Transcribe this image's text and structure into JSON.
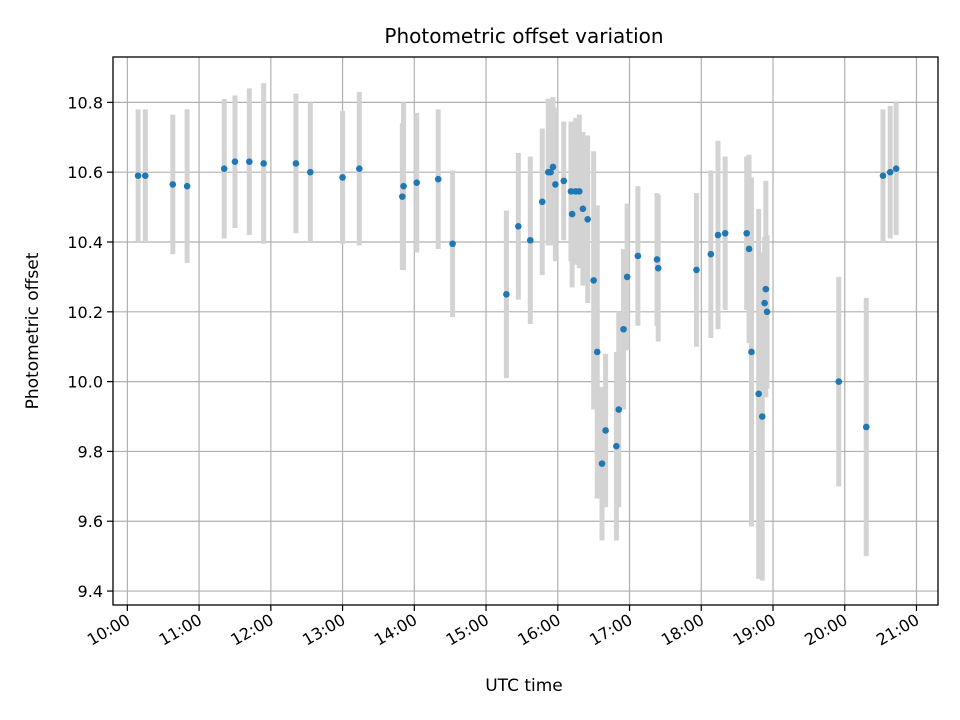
{
  "chart_data": {
    "type": "scatter",
    "title": "Photometric offset variation",
    "xlabel": "UTC time",
    "ylabel": "Photometric offset",
    "x_unit": "hours UTC",
    "xlim": [
      "09:48",
      "21:18"
    ],
    "ylim": [
      9.36,
      10.93
    ],
    "xticks": [
      "10:00",
      "11:00",
      "12:00",
      "13:00",
      "14:00",
      "15:00",
      "16:00",
      "17:00",
      "18:00",
      "19:00",
      "20:00",
      "21:00"
    ],
    "yticks": [
      "9.4",
      "9.6",
      "9.8",
      "10.0",
      "10.2",
      "10.4",
      "10.6",
      "10.8"
    ],
    "grid": true,
    "legend": "none",
    "colors": {
      "point": "#1f77b4",
      "errorbar": "#d3d3d3",
      "grid": "#b0b0b0"
    },
    "series": [
      {
        "x": [
          "10:09",
          "10:15",
          "10:38",
          "10:50",
          "11:21",
          "11:30",
          "11:42",
          "11:54",
          "12:21",
          "12:33",
          "13:00",
          "13:14",
          "13:50",
          "13:51",
          "14:02",
          "14:20",
          "14:32",
          "15:17",
          "15:27",
          "15:37",
          "15:47",
          "15:52",
          "15:54",
          "15:56",
          "15:58",
          "16:05",
          "16:11",
          "16:12",
          "16:15",
          "16:18",
          "16:21",
          "16:25",
          "16:30",
          "16:33",
          "16:37",
          "16:40",
          "16:49",
          "16:51",
          "16:55",
          "16:58",
          "17:07",
          "17:23",
          "17:24",
          "17:56",
          "18:08",
          "18:14",
          "18:20",
          "18:38",
          "18:40",
          "18:42",
          "18:48",
          "18:51",
          "18:53",
          "18:54",
          "18:55",
          "19:55",
          "20:18",
          "20:32",
          "20:38",
          "20:43"
        ],
        "y": [
          10.59,
          10.59,
          10.565,
          10.56,
          10.61,
          10.63,
          10.63,
          10.625,
          10.625,
          10.6,
          10.585,
          10.61,
          10.53,
          10.56,
          10.57,
          10.58,
          10.395,
          10.25,
          10.445,
          10.405,
          10.515,
          10.6,
          10.6,
          10.615,
          10.565,
          10.575,
          10.545,
          10.48,
          10.545,
          10.545,
          10.495,
          10.465,
          10.29,
          10.085,
          9.765,
          9.86,
          9.815,
          9.92,
          10.15,
          10.3,
          10.36,
          10.35,
          10.325,
          10.32,
          10.365,
          10.42,
          10.425,
          10.425,
          10.38,
          10.085,
          9.965,
          9.9,
          10.225,
          10.265,
          10.2,
          10.0,
          9.87,
          10.59,
          10.6,
          10.61
        ],
        "yerr": [
          0.19,
          0.19,
          0.2,
          0.22,
          0.2,
          0.19,
          0.21,
          0.23,
          0.2,
          0.2,
          0.19,
          0.22,
          0.21,
          0.24,
          0.2,
          0.2,
          0.21,
          0.24,
          0.21,
          0.24,
          0.21,
          0.21,
          0.21,
          0.2,
          0.22,
          0.17,
          0.2,
          0.21,
          0.21,
          0.22,
          0.22,
          0.24,
          0.37,
          0.42,
          0.22,
          0.22,
          0.27,
          0.28,
          0.23,
          0.21,
          0.2,
          0.19,
          0.21,
          0.22,
          0.24,
          0.27,
          0.22,
          0.22,
          0.27,
          0.5,
          0.53,
          0.47,
          0.19,
          0.31,
          0.22,
          0.3,
          0.37,
          0.19,
          0.19,
          0.19
        ]
      }
    ]
  }
}
